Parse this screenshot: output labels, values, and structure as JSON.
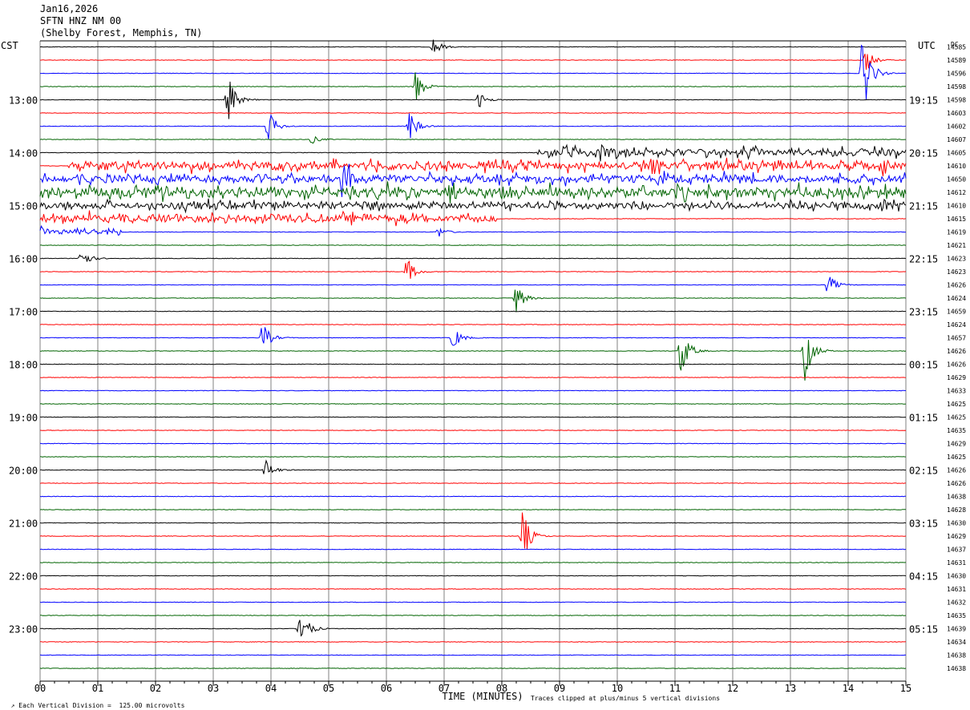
{
  "header": {
    "date": "Jan16,2026",
    "station": "SFTN HNZ NM 00",
    "location": "(Shelby Forest, Memphis, TN)"
  },
  "footer": {
    "scale_note": "Each Vertical Division =  125.00 microvolts",
    "clip_note": "Traces clipped at plus/minus 5 vertical divisions"
  },
  "colors": {
    "trace_cycle": [
      "#000000",
      "#ff0000",
      "#0000ff",
      "#006400"
    ],
    "grid": "#808080"
  },
  "chart_data": {
    "type": "line",
    "title": "",
    "xlabel": "TIME (MINUTES)",
    "x_ticks": [
      "00",
      "01",
      "02",
      "03",
      "04",
      "05",
      "06",
      "07",
      "08",
      "09",
      "10",
      "11",
      "12",
      "13",
      "14",
      "15"
    ],
    "xlim": [
      0,
      15
    ],
    "left_axis_label": "CST",
    "right_axis_label": "UTC",
    "dc_label": "DC",
    "left_time_labels": [
      "13:00",
      "14:00",
      "15:00",
      "16:00",
      "17:00",
      "18:00",
      "19:00",
      "20:00",
      "21:00",
      "22:00",
      "23:00"
    ],
    "right_time_labels": [
      "19:15",
      "20:15",
      "21:15",
      "22:15",
      "23:15",
      "00:15",
      "01:15",
      "02:15",
      "03:15",
      "04:15",
      "05:15"
    ],
    "traces_per_hour": 4,
    "trace_count": 48,
    "dc_offsets": [
      "14585",
      "14589",
      "14596",
      "14598",
      "14598",
      "14603",
      "14602",
      "14607",
      "14605",
      "14610",
      "14650",
      "14612",
      "14610",
      "14615",
      "14619",
      "14621",
      "14623",
      "14623",
      "14626",
      "14624",
      "14659",
      "14624",
      "14657",
      "14626",
      "14626",
      "14629",
      "14633",
      "14625",
      "14625",
      "14635",
      "14629",
      "14625",
      "14626",
      "14626",
      "14638",
      "14628",
      "14630",
      "14629",
      "14637",
      "14631",
      "14630",
      "14631",
      "14632",
      "14635",
      "14639",
      "14634",
      "14638",
      "14638"
    ],
    "events": [
      {
        "trace": 0,
        "minute": 6.8,
        "amplitude": 0.9
      },
      {
        "trace": 1,
        "minute": 14.3,
        "amplitude": 1.1
      },
      {
        "trace": 2,
        "minute": 14.25,
        "amplitude": 4.0
      },
      {
        "trace": 3,
        "minute": 6.5,
        "amplitude": 1.6
      },
      {
        "trace": 4,
        "minute": 3.25,
        "amplitude": 2.2
      },
      {
        "trace": 4,
        "minute": 7.6,
        "amplitude": 0.7
      },
      {
        "trace": 6,
        "minute": 3.95,
        "amplitude": 1.5
      },
      {
        "trace": 6,
        "minute": 6.4,
        "amplitude": 1.4
      },
      {
        "trace": 7,
        "minute": 4.7,
        "amplitude": 0.4
      },
      {
        "trace": 8,
        "minute": 9.1,
        "amplitude": 0.5
      },
      {
        "trace": 8,
        "minute": 9.7,
        "amplitude": 0.4
      },
      {
        "trace": 9,
        "minute": 10.6,
        "amplitude": 0.6
      },
      {
        "trace": 9,
        "minute": 14.6,
        "amplitude": 0.6
      },
      {
        "trace": 10,
        "minute": 5.25,
        "amplitude": 2.0
      },
      {
        "trace": 11,
        "minute": 7.1,
        "amplitude": 0.9
      },
      {
        "trace": 11,
        "minute": 2.2,
        "amplitude": 0.4
      },
      {
        "trace": 12,
        "minute": 14.6,
        "amplitude": 0.5
      },
      {
        "trace": 14,
        "minute": 6.9,
        "amplitude": 0.5
      },
      {
        "trace": 16,
        "minute": 0.7,
        "amplitude": 1.1
      },
      {
        "trace": 17,
        "minute": 6.35,
        "amplitude": 1.3
      },
      {
        "trace": 18,
        "minute": 13.65,
        "amplitude": 1.0
      },
      {
        "trace": 19,
        "minute": 8.25,
        "amplitude": 1.3
      },
      {
        "trace": 22,
        "minute": 3.85,
        "amplitude": 1.4
      },
      {
        "trace": 22,
        "minute": 7.15,
        "amplitude": 1.1
      },
      {
        "trace": 23,
        "minute": 11.1,
        "amplitude": 2.4
      },
      {
        "trace": 23,
        "minute": 13.25,
        "amplitude": 2.6
      },
      {
        "trace": 32,
        "minute": 3.9,
        "amplitude": 1.0
      },
      {
        "trace": 37,
        "minute": 8.35,
        "amplitude": 2.5
      },
      {
        "trace": 44,
        "minute": 4.5,
        "amplitude": 2.2
      }
    ],
    "noisy_traces": [
      {
        "trace": 8,
        "from": 8.6,
        "to": 15,
        "level": 0.35
      },
      {
        "trace": 9,
        "from": 0.5,
        "to": 15,
        "level": 0.35
      },
      {
        "trace": 10,
        "from": 0,
        "to": 15,
        "level": 0.35
      },
      {
        "trace": 11,
        "from": 0,
        "to": 15,
        "level": 0.45
      },
      {
        "trace": 12,
        "from": 0,
        "to": 15,
        "level": 0.3
      },
      {
        "trace": 13,
        "from": 0,
        "to": 7.9,
        "level": 0.35
      },
      {
        "trace": 14,
        "from": 0,
        "to": 1.4,
        "level": 0.3
      }
    ]
  }
}
